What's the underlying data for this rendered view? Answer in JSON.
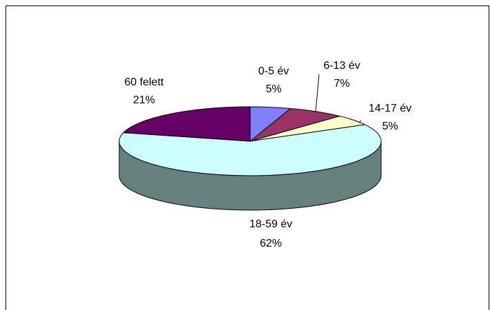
{
  "chart_data": {
    "type": "pie",
    "style": "3d",
    "title": "",
    "legend": "none",
    "slices": [
      {
        "label": "0-5 év",
        "value": 5,
        "pct_label": "5%",
        "color": "#8080FF"
      },
      {
        "label": "6-13 év",
        "value": 7,
        "pct_label": "7%",
        "color": "#993366"
      },
      {
        "label": "14-17 év",
        "value": 5,
        "pct_label": "5%",
        "color": "#FFFFCC"
      },
      {
        "label": "18-59 év",
        "value": 62,
        "pct_label": "62%",
        "color": "#CCFFFF"
      },
      {
        "label": "60 felett",
        "value": 21,
        "pct_label": "21%",
        "color": "#660066"
      }
    ]
  }
}
